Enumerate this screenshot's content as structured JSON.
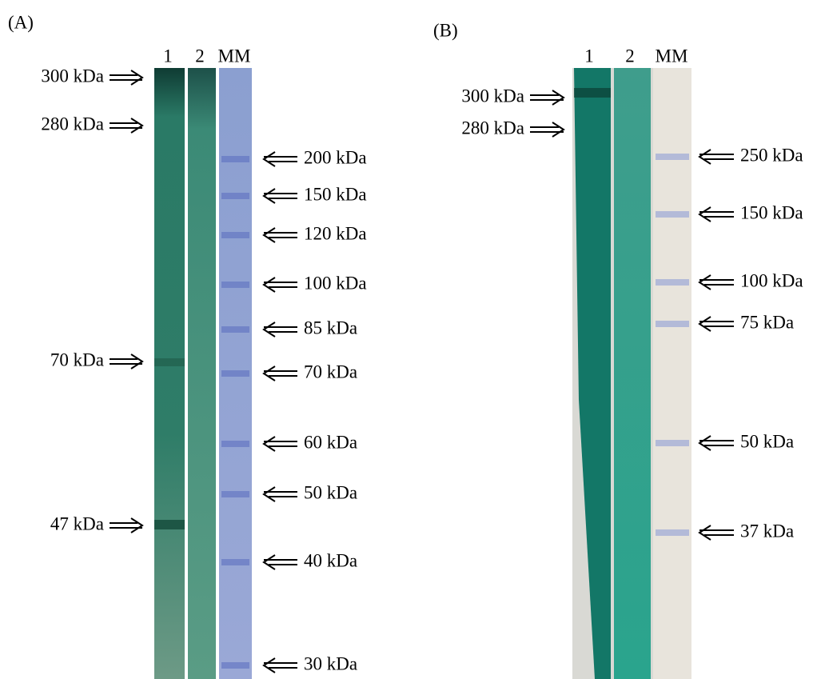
{
  "panels": [
    {
      "label": "(A)",
      "lanes": [
        "1",
        "2",
        "MM"
      ],
      "left_markers": [
        "300 kDa",
        "280 kDa",
        "70 kDa",
        "47 kDa"
      ],
      "right_markers": [
        "200 kDa",
        "150 kDa",
        "120 kDa",
        "100 kDa",
        "85 kDa",
        "70 kDa",
        "60 kDa",
        "50 kDa",
        "40 kDa",
        "30 kDa"
      ]
    },
    {
      "label": "(B)",
      "lanes": [
        "1",
        "2",
        "MM"
      ],
      "left_markers": [
        "300 kDa",
        "280 kDa"
      ],
      "right_markers": [
        "250 kDa",
        "150 kDa",
        "100 kDa",
        "75 kDa",
        "50 kDa",
        "37 kDa"
      ]
    }
  ]
}
